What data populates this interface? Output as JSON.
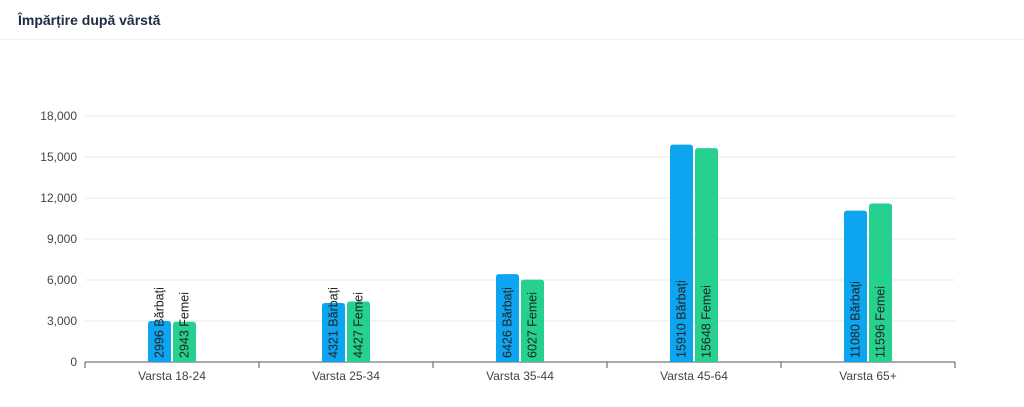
{
  "header": {
    "title": "Împărțire după vârstă"
  },
  "chart_data": {
    "type": "bar",
    "title": "Împărțire după vârstă",
    "categories": [
      "Varsta 18-24",
      "Varsta 25-34",
      "Varsta 35-44",
      "Varsta 45-64",
      "Varsta 65+"
    ],
    "series": [
      {
        "name": "Bărbați",
        "color": "#0ea5f0",
        "values": [
          2996,
          4321,
          6426,
          15910,
          11080
        ]
      },
      {
        "name": "Femei",
        "color": "#26d08f",
        "values": [
          2943,
          4427,
          6027,
          15648,
          11596
        ]
      }
    ],
    "ylim": [
      0,
      18000
    ],
    "yticks": [
      "0",
      "3,000",
      "6,000",
      "9,000",
      "12,000",
      "15,000",
      "18,000"
    ],
    "grid": true,
    "xlabel": "",
    "ylabel": ""
  }
}
